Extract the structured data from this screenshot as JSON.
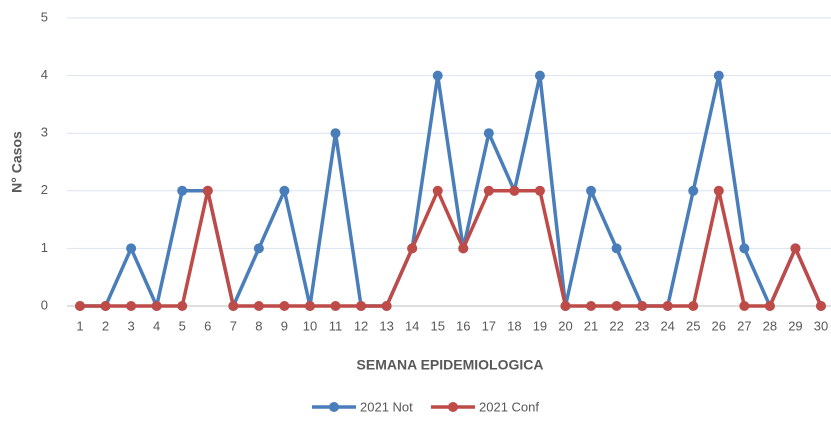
{
  "chart_data": {
    "type": "line",
    "x_label": "SEMANA EPIDEMIOLOGICA",
    "y_label": "N° Casos",
    "categories": [
      1,
      2,
      3,
      4,
      5,
      6,
      7,
      8,
      9,
      10,
      11,
      12,
      13,
      14,
      15,
      16,
      17,
      18,
      19,
      20,
      21,
      22,
      23,
      24,
      25,
      26,
      27,
      28,
      29,
      30
    ],
    "series": [
      {
        "name": "2021 Not",
        "color": "#4a7ebb",
        "values": [
          0,
          0,
          1,
          0,
          2,
          2,
          0,
          1,
          2,
          0,
          3,
          0,
          0,
          1,
          4,
          1,
          3,
          2,
          4,
          0,
          2,
          1,
          0,
          0,
          2,
          4,
          1,
          0,
          1,
          0
        ]
      },
      {
        "name": "2021 Conf",
        "color": "#be4b48",
        "values": [
          0,
          0,
          0,
          0,
          0,
          2,
          0,
          0,
          0,
          0,
          0,
          0,
          0,
          1,
          2,
          1,
          2,
          2,
          2,
          0,
          0,
          0,
          0,
          0,
          0,
          2,
          0,
          0,
          1,
          0
        ]
      }
    ],
    "ylim": [
      0,
      5
    ],
    "yticks": [
      0,
      1,
      2,
      3,
      4,
      5
    ],
    "grid": true,
    "legend": "bottom"
  }
}
